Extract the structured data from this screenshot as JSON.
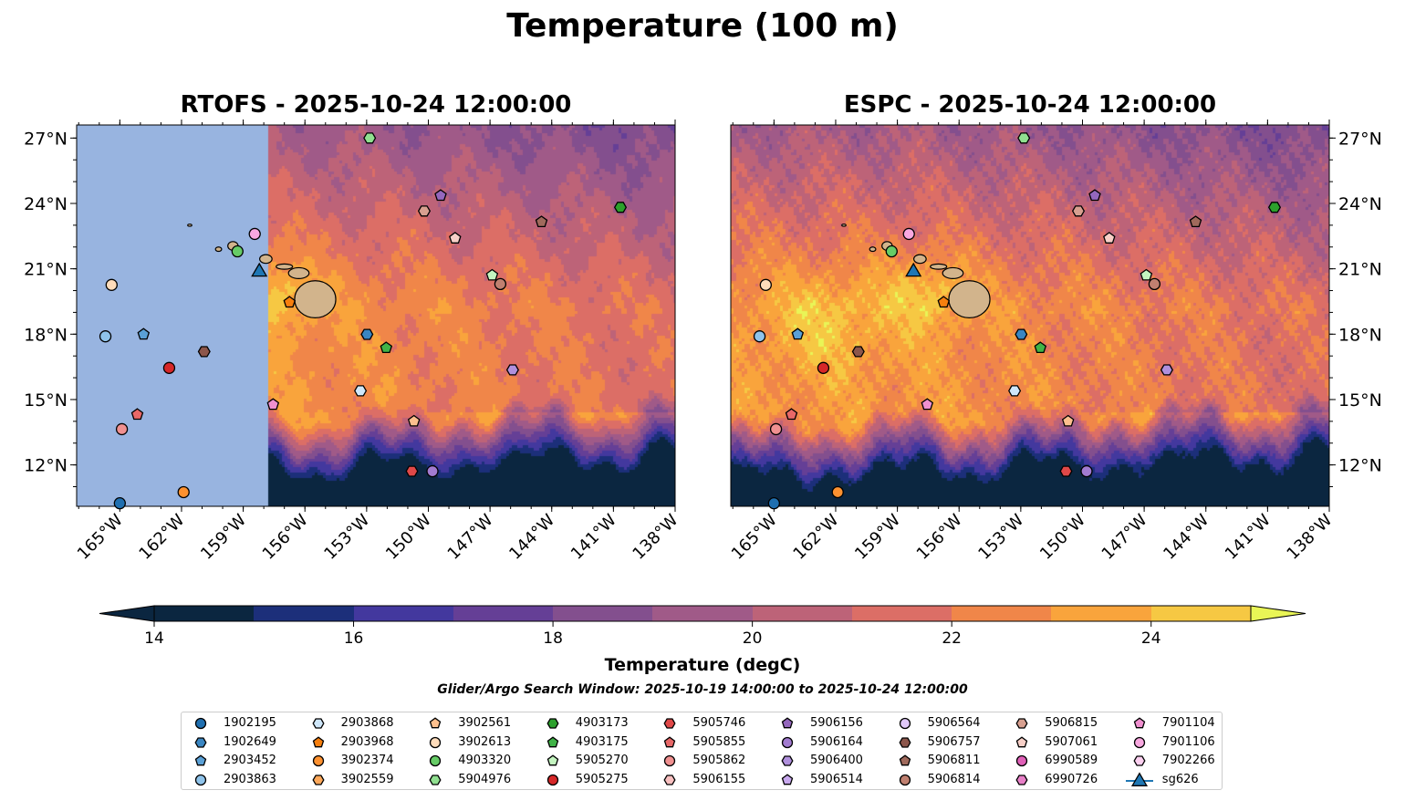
{
  "title": "Temperature (100 m)",
  "chart_data": {
    "type": "heatmap",
    "panels": [
      {
        "name": "RTOFS",
        "title": "RTOFS - 2025-10-24 12:00:00"
      },
      {
        "name": "ESPC",
        "title": "ESPC - 2025-10-24 12:00:00"
      }
    ],
    "xlim": [
      -167.1,
      -138
    ],
    "ylim": [
      10.1,
      27.6
    ],
    "x_ticks": [
      -165,
      -162,
      -159,
      -156,
      -153,
      -150,
      -147,
      -144,
      -141,
      -138
    ],
    "x_tick_labels": [
      "165°W",
      "162°W",
      "159°W",
      "156°W",
      "153°W",
      "150°W",
      "147°W",
      "144°W",
      "141°W",
      "138°W"
    ],
    "y_ticks": [
      12,
      15,
      18,
      21,
      24,
      27
    ],
    "y_tick_labels": [
      "12°N",
      "15°N",
      "18°N",
      "21°N",
      "24°N",
      "27°N"
    ],
    "colorbar": {
      "label": "Temperature (degC)",
      "levels": [
        14,
        15,
        16,
        17,
        18,
        19,
        20,
        21,
        22,
        23,
        24,
        25
      ],
      "tick_labels": [
        "14",
        "16",
        "18",
        "20",
        "22",
        "24"
      ],
      "tick_values": [
        14,
        16,
        18,
        20,
        22,
        24
      ],
      "colors": [
        "#0b2640",
        "#1c2f7a",
        "#43389e",
        "#653f96",
        "#834f8e",
        "#a05a88",
        "#bd6378",
        "#dc6e66",
        "#f08649",
        "#f9a43c",
        "#f6c843"
      ],
      "under_color": "#0b2640",
      "over_color": "#e9f556",
      "mask_color": "#98b4e0"
    },
    "search_window": "Glider/Argo Search Window: 2025-10-19 14:00:00 to 2025-10-24 12:00:00",
    "platforms": [
      {
        "id": "1902195",
        "marker": "circle",
        "color": "#1f6fb0",
        "lon": -165.0,
        "lat": 10.24
      },
      {
        "id": "1902649",
        "marker": "hexagon",
        "color": "#3a86c2",
        "lon": -152.98,
        "lat": 17.99
      },
      {
        "id": "2903452",
        "marker": "pentagon",
        "color": "#5aa0d6",
        "lon": -163.85,
        "lat": 17.99
      },
      {
        "id": "2903863",
        "marker": "circle",
        "color": "#8fc3ea",
        "lon": -165.7,
        "lat": 17.9
      },
      {
        "id": "2903868",
        "marker": "hexagon",
        "color": "#cfe7fa",
        "lon": -153.3,
        "lat": 15.4
      },
      {
        "id": "2903968",
        "marker": "pentagon",
        "color": "#f77f0e",
        "lon": -156.75,
        "lat": 19.46
      },
      {
        "id": "3902374",
        "marker": "circle",
        "color": "#fd9130",
        "lon": -161.9,
        "lat": 10.75
      },
      {
        "id": "3902559",
        "marker": "hexagon",
        "color": "#fda85a"
      },
      {
        "id": "3902561",
        "marker": "pentagon",
        "color": "#fdc08e",
        "lon": -150.7,
        "lat": 14.0
      },
      {
        "id": "3902613",
        "marker": "circle",
        "color": "#fedcbb",
        "lon": -165.4,
        "lat": 20.26
      },
      {
        "id": "4903320",
        "marker": "circle",
        "color": "#66cc66",
        "lon": -159.28,
        "lat": 21.8
      },
      {
        "id": "5904976",
        "marker": "hexagon",
        "color": "#90e090",
        "lon": -152.85,
        "lat": 27.0
      },
      {
        "id": "4903173",
        "marker": "hexagon",
        "color": "#2ca02c",
        "lon": -140.66,
        "lat": 23.82
      },
      {
        "id": "4903175",
        "marker": "pentagon",
        "color": "#40b347",
        "lon": -152.05,
        "lat": 17.37
      },
      {
        "id": "5905270",
        "marker": "pentagon",
        "color": "#c4f5c0",
        "lon": -146.9,
        "lat": 20.7
      },
      {
        "id": "5905275",
        "marker": "circle",
        "color": "#d62728",
        "lon": -162.6,
        "lat": 16.45
      },
      {
        "id": "5905746",
        "marker": "hexagon",
        "color": "#e04848",
        "lon": -150.8,
        "lat": 11.71
      },
      {
        "id": "5905855",
        "marker": "pentagon",
        "color": "#e86868",
        "lon": -164.15,
        "lat": 14.31
      },
      {
        "id": "5905862",
        "marker": "circle",
        "color": "#f09090",
        "lon": -164.9,
        "lat": 13.64
      },
      {
        "id": "5906155",
        "marker": "hexagon",
        "color": "#f8c0c0"
      },
      {
        "id": "5906156",
        "marker": "pentagon",
        "color": "#9467bd",
        "lon": -149.4,
        "lat": 24.36
      },
      {
        "id": "5906164",
        "marker": "circle",
        "color": "#a27bd0",
        "lon": -149.8,
        "lat": 11.71
      },
      {
        "id": "5906400",
        "marker": "hexagon",
        "color": "#b090dd",
        "lon": -145.9,
        "lat": 16.36
      },
      {
        "id": "5906514",
        "marker": "pentagon",
        "color": "#c8a8ee"
      },
      {
        "id": "5906564",
        "marker": "circle",
        "color": "#e0c8f8"
      },
      {
        "id": "5906757",
        "marker": "hexagon",
        "color": "#8c564b",
        "lon": -160.9,
        "lat": 17.2
      },
      {
        "id": "5906811",
        "marker": "pentagon",
        "color": "#a06a5c",
        "lon": -144.5,
        "lat": 23.15
      },
      {
        "id": "5906814",
        "marker": "circle",
        "color": "#c08070",
        "lon": -146.5,
        "lat": 20.3
      },
      {
        "id": "5906815",
        "marker": "hexagon",
        "color": "#d8a090",
        "lon": -150.2,
        "lat": 23.65
      },
      {
        "id": "5907061",
        "marker": "pentagon",
        "color": "#f8d0c8",
        "lon": -148.7,
        "lat": 22.4
      },
      {
        "id": "6990589",
        "marker": "circle",
        "color": "#e060b8"
      },
      {
        "id": "6990726",
        "marker": "hexagon",
        "color": "#e880c8"
      },
      {
        "id": "7901104",
        "marker": "pentagon",
        "color": "#f090d0",
        "lon": -157.55,
        "lat": 14.77
      },
      {
        "id": "7901106",
        "marker": "circle",
        "color": "#f8a8e0",
        "lon": -158.44,
        "lat": 22.6
      },
      {
        "id": "7902266",
        "marker": "hexagon",
        "color": "#fcd0f0"
      },
      {
        "id": "sg626",
        "marker": "triangle",
        "color": "#1f77b4",
        "lon": -158.22,
        "lat": 20.93
      }
    ]
  }
}
